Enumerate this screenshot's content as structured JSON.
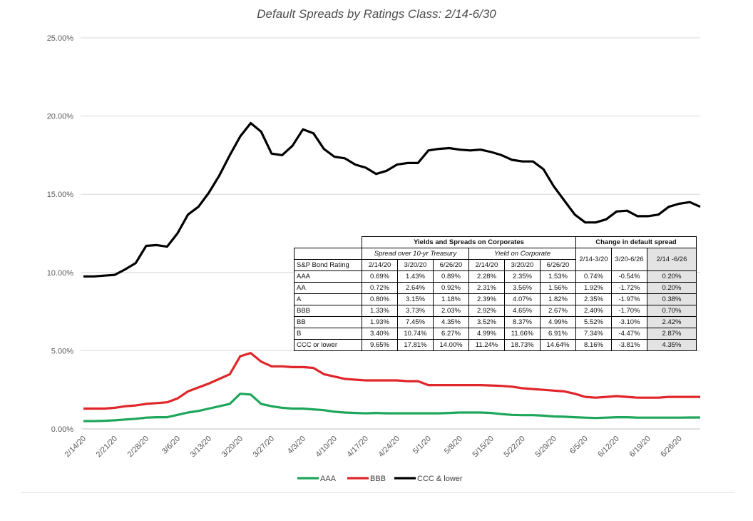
{
  "chart_data": {
    "type": "line",
    "title": "Default Spreads by Ratings Class: 2/14-6/30",
    "ylim": [
      0,
      25
    ],
    "yticks": [
      "0.00%",
      "5.00%",
      "10.00%",
      "15.00%",
      "20.00%",
      "25.00%"
    ],
    "yticks_values": [
      0,
      5,
      10,
      15,
      20,
      25
    ],
    "grid": "horizontal",
    "legend_position": "bottom",
    "x": [
      "2/14/20",
      "2/17/20",
      "2/19/20",
      "2/21/20",
      "2/24/20",
      "2/26/20",
      "2/28/20",
      "3/2/20",
      "3/4/20",
      "3/6/20",
      "3/9/20",
      "3/11/20",
      "3/13/20",
      "3/16/20",
      "3/18/20",
      "3/20/20",
      "3/23/20",
      "3/25/20",
      "3/27/20",
      "3/30/20",
      "4/1/20",
      "4/3/20",
      "4/6/20",
      "4/8/20",
      "4/10/20",
      "4/13/20",
      "4/15/20",
      "4/17/20",
      "4/20/20",
      "4/22/20",
      "4/24/20",
      "4/27/20",
      "4/29/20",
      "5/1/20",
      "5/4/20",
      "5/6/20",
      "5/8/20",
      "5/11/20",
      "5/13/20",
      "5/15/20",
      "5/18/20",
      "5/20/20",
      "5/22/20",
      "5/25/20",
      "5/27/20",
      "5/29/20",
      "6/1/20",
      "6/3/20",
      "6/5/20",
      "6/8/20",
      "6/10/20",
      "6/12/20",
      "6/15/20",
      "6/17/20",
      "6/19/20",
      "6/22/20",
      "6/24/20",
      "6/26/20",
      "6/29/20",
      "6/30/20"
    ],
    "x_tick_labels": [
      "2/14/20",
      "2/21/20",
      "2/28/20",
      "3/6/20",
      "3/13/20",
      "3/20/20",
      "3/27/20",
      "4/3/20",
      "4/10/20",
      "4/17/20",
      "4/24/20",
      "5/1/20",
      "5/8/20",
      "5/15/20",
      "5/22/20",
      "5/29/20",
      "6/5/20",
      "6/12/20",
      "6/19/20",
      "6/26/20"
    ],
    "series": [
      {
        "name": "AAA",
        "color": "#1ea65a",
        "values": [
          0.5,
          0.5,
          0.52,
          0.55,
          0.6,
          0.65,
          0.72,
          0.75,
          0.75,
          0.9,
          1.05,
          1.15,
          1.3,
          1.45,
          1.6,
          2.25,
          2.2,
          1.6,
          1.45,
          1.35,
          1.3,
          1.3,
          1.25,
          1.2,
          1.1,
          1.05,
          1.02,
          1.0,
          1.02,
          1.0,
          1.0,
          1.0,
          1.0,
          1.0,
          1.0,
          1.02,
          1.05,
          1.05,
          1.05,
          1.02,
          0.95,
          0.9,
          0.88,
          0.88,
          0.85,
          0.8,
          0.78,
          0.75,
          0.72,
          0.7,
          0.72,
          0.75,
          0.75,
          0.72,
          0.72,
          0.72,
          0.72,
          0.72,
          0.73,
          0.73
        ]
      },
      {
        "name": "BBB",
        "color": "#e0262a",
        "values": [
          1.3,
          1.3,
          1.3,
          1.35,
          1.45,
          1.5,
          1.6,
          1.65,
          1.7,
          1.95,
          2.4,
          2.65,
          2.9,
          3.2,
          3.5,
          4.65,
          4.85,
          4.3,
          4.0,
          4.0,
          3.95,
          3.95,
          3.9,
          3.5,
          3.35,
          3.2,
          3.15,
          3.1,
          3.1,
          3.1,
          3.1,
          3.05,
          3.05,
          2.8,
          2.8,
          2.8,
          2.8,
          2.8,
          2.8,
          2.78,
          2.75,
          2.7,
          2.6,
          2.55,
          2.5,
          2.45,
          2.4,
          2.25,
          2.05,
          2.0,
          2.05,
          2.1,
          2.05,
          2.0,
          2.0,
          2.0,
          2.05,
          2.05,
          2.05,
          2.05
        ]
      },
      {
        "name": "CCC & lower",
        "color": "#000000",
        "values": [
          9.75,
          9.75,
          9.8,
          9.85,
          10.2,
          10.6,
          11.7,
          11.75,
          11.65,
          12.5,
          13.7,
          14.2,
          15.1,
          16.2,
          17.5,
          18.7,
          19.55,
          19.0,
          17.6,
          17.5,
          18.1,
          19.15,
          18.9,
          17.9,
          17.4,
          17.3,
          16.9,
          16.7,
          16.3,
          16.5,
          16.9,
          17.0,
          17.0,
          17.8,
          17.9,
          17.95,
          17.85,
          17.8,
          17.85,
          17.7,
          17.5,
          17.2,
          17.1,
          17.1,
          16.6,
          15.5,
          14.6,
          13.7,
          13.2,
          13.2,
          13.4,
          13.9,
          13.95,
          13.6,
          13.6,
          13.7,
          14.2,
          14.4,
          14.5,
          14.2
        ]
      }
    ]
  },
  "table": {
    "group_headers": [
      "Yields and Spreads on Corporates",
      "Change in default spread"
    ],
    "sub_headers": [
      "Spread over 10-yr Treasury",
      "Yield on Corporate"
    ],
    "rating_header": "S&P Bond Rating",
    "date_headers": [
      "2/14/20",
      "3/20/20",
      "6/26/20",
      "2/14/20",
      "3/20/20",
      "6/26/20"
    ],
    "change_headers": [
      "2/14-3/20",
      "3/20-6/26",
      "2/14 -6/26"
    ],
    "rows": [
      {
        "rating": "AAA",
        "cells": [
          "0.69%",
          "1.43%",
          "0.89%",
          "2.28%",
          "2.35%",
          "1.53%",
          "0.74%",
          "-0.54%",
          "0.20%"
        ]
      },
      {
        "rating": "AA",
        "cells": [
          "0.72%",
          "2.64%",
          "0.92%",
          "2.31%",
          "3.56%",
          "1.56%",
          "1.92%",
          "-1.72%",
          "0.20%"
        ]
      },
      {
        "rating": "A",
        "cells": [
          "0.80%",
          "3.15%",
          "1.18%",
          "2.39%",
          "4.07%",
          "1.82%",
          "2.35%",
          "-1.97%",
          "0.38%"
        ]
      },
      {
        "rating": "BBB",
        "cells": [
          "1.33%",
          "3.73%",
          "2.03%",
          "2.92%",
          "4.65%",
          "2.67%",
          "2.40%",
          "-1.70%",
          "0.70%"
        ]
      },
      {
        "rating": "BB",
        "cells": [
          "1.93%",
          "7.45%",
          "4.35%",
          "3.52%",
          "8.37%",
          "4.99%",
          "5.52%",
          "-3.10%",
          "2.42%"
        ]
      },
      {
        "rating": "B",
        "cells": [
          "3.40%",
          "10.74%",
          "6.27%",
          "4.99%",
          "11.66%",
          "6.91%",
          "7.34%",
          "-4.47%",
          "2.87%"
        ]
      },
      {
        "rating": "CCC or lower",
        "cells": [
          "9.65%",
          "17.81%",
          "14.00%",
          "11.24%",
          "18.73%",
          "14.64%",
          "8.16%",
          "-3.81%",
          "4.35%"
        ]
      }
    ]
  }
}
